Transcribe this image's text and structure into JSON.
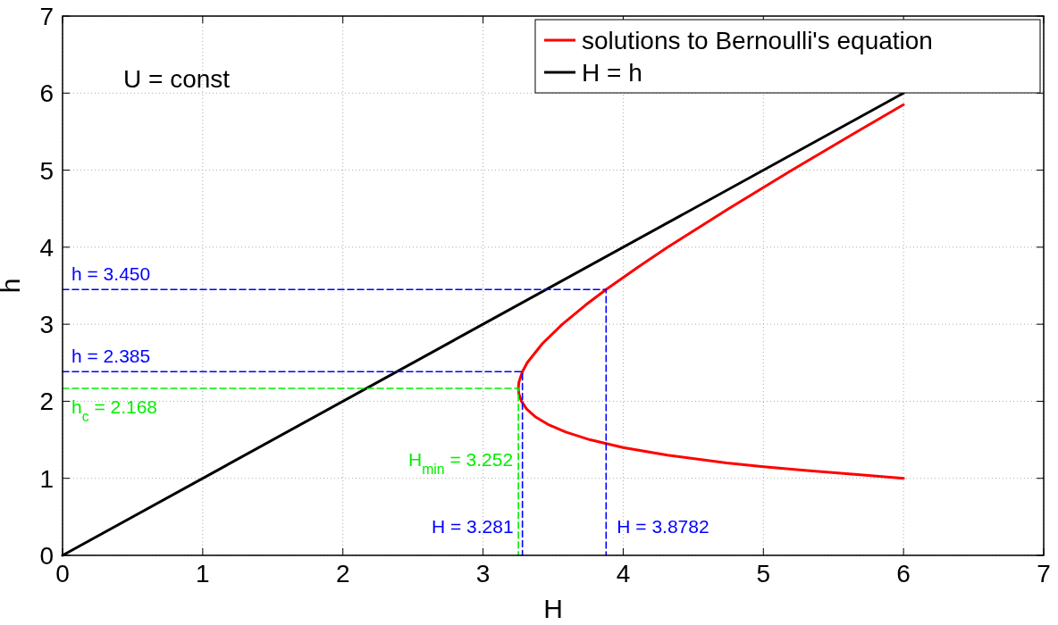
{
  "chart_data": {
    "type": "line",
    "xlabel": "H",
    "ylabel": "h",
    "xlim": [
      0,
      7
    ],
    "ylim": [
      0,
      7
    ],
    "xticks": [
      0,
      1,
      2,
      3,
      4,
      5,
      6,
      7
    ],
    "yticks": [
      0,
      1,
      2,
      3,
      4,
      5,
      6,
      7
    ],
    "grid": true,
    "legend": "top right",
    "line_style": "solid",
    "marker": "none",
    "series": [
      {
        "name": "solutions to Bernoulli's equation",
        "color": "#ff0000",
        "x": [
          6.0,
          5.671,
          5.311,
          5.002,
          4.738,
          4.315,
          3.999,
          3.764,
          3.59,
          3.463,
          3.372,
          3.311,
          3.274,
          3.255,
          3.252,
          3.256,
          3.281,
          3.315,
          3.424,
          3.566,
          3.732,
          3.878,
          4.112,
          4.318,
          4.752,
          5.204,
          5.668,
          5.999
        ],
        "values": [
          1.0,
          1.05,
          1.1,
          1.15,
          1.2,
          1.3,
          1.4,
          1.5,
          1.6,
          1.7,
          1.8,
          1.9,
          2.0,
          2.1,
          2.168,
          2.25,
          2.385,
          2.5,
          2.75,
          3.0,
          3.25,
          3.45,
          3.75,
          4.0,
          4.5,
          5.0,
          5.5,
          5.85
        ]
      },
      {
        "name": "H = h",
        "color": "#000000",
        "x": [
          0,
          6
        ],
        "values": [
          0,
          6
        ]
      },
      {
        "color": "#0000ff",
        "line_style": "dashed",
        "x": [
          0,
          3.878,
          3.878
        ],
        "values": [
          3.45,
          3.45,
          0
        ]
      },
      {
        "color": "#0000ff",
        "line_style": "dashed",
        "x": [
          0,
          3.281,
          3.281
        ],
        "values": [
          2.385,
          2.385,
          0
        ]
      },
      {
        "color": "#00ee00",
        "line_style": "dashed",
        "x": [
          0,
          3.252,
          3.252
        ],
        "values": [
          2.168,
          2.168,
          0
        ]
      }
    ],
    "annotations": [
      "U = const",
      {
        "text": "h = 3.450",
        "x": 0,
        "y": 3.45
      },
      {
        "text": "h = 2.385",
        "x": 0,
        "y": 2.385
      },
      {
        "text": "h$_{c}$ = 2.168",
        "x": 0,
        "y": 2.168
      },
      {
        "text": "H$_{min}$ = 3.252",
        "x": 3.252,
        "y": 1.25
      },
      {
        "text": "H = 3.281",
        "x": 3.281,
        "y": 0
      },
      {
        "text": "H = 3.8782",
        "x": 3.878,
        "y": 0
      }
    ]
  }
}
